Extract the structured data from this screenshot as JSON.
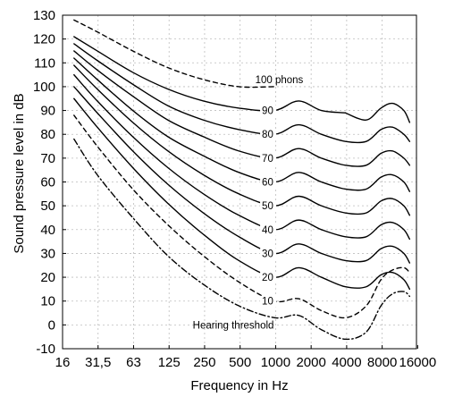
{
  "chart_data": {
    "type": "line",
    "xlabel": "Frequency in Hz",
    "ylabel": "Sound pressure level in dB",
    "xscale": "log2",
    "xlim": [
      16,
      16000
    ],
    "ylim": [
      -10,
      130
    ],
    "x_tick_labels": [
      "16",
      "31,5",
      "63",
      "125",
      "250",
      "500",
      "1000",
      "2000",
      "4000",
      "8000",
      "16000"
    ],
    "y_ticks": [
      -10,
      0,
      10,
      20,
      30,
      40,
      50,
      60,
      70,
      80,
      90,
      100,
      110,
      120,
      130
    ],
    "grid": true,
    "series": [
      {
        "name": "100 phons",
        "label": "100 phons",
        "line_style": "dashed",
        "x": [
          20,
          31.5,
          63,
          125,
          250,
          500,
          1000
        ],
        "y": [
          128,
          123,
          115,
          108,
          103,
          100,
          100
        ]
      },
      {
        "name": "90",
        "label": "90",
        "line_style": "solid",
        "x": [
          20,
          31.5,
          63,
          125,
          250,
          500,
          1000,
          1600,
          2500,
          4000,
          6000,
          8000,
          10000,
          12500,
          14000
        ],
        "y": [
          121,
          115,
          106,
          99,
          94,
          91,
          90,
          94,
          90,
          89,
          null,
          null,
          null,
          null,
          null
        ],
        "x2": [
          4000,
          6000,
          8000,
          10000,
          12500,
          14000
        ],
        "y2": [
          89,
          86,
          91,
          93,
          90,
          85
        ]
      },
      {
        "name": "80",
        "label": "80",
        "line_style": "solid",
        "x": [
          20,
          31.5,
          63,
          125,
          250,
          500,
          1000,
          1600,
          2500,
          4000,
          6000,
          8000,
          10000,
          12500,
          14000
        ],
        "y": [
          118,
          111,
          101,
          92,
          86,
          82,
          80,
          84,
          80,
          77,
          77,
          82,
          83,
          80,
          77
        ]
      },
      {
        "name": "70",
        "label": "70",
        "line_style": "solid",
        "x": [
          20,
          31.5,
          63,
          125,
          250,
          500,
          1000,
          1600,
          2500,
          4000,
          6000,
          8000,
          10000,
          12500,
          14000
        ],
        "y": [
          115,
          107,
          96,
          86,
          79,
          73,
          70,
          74,
          70,
          67,
          67,
          72,
          73,
          70,
          67
        ]
      },
      {
        "name": "60",
        "label": "60",
        "line_style": "solid",
        "x": [
          20,
          31.5,
          63,
          125,
          250,
          500,
          1000,
          1600,
          2500,
          4000,
          6000,
          8000,
          10000,
          12500,
          14000
        ],
        "y": [
          112,
          103,
          90,
          79,
          71,
          64,
          60,
          64,
          60,
          57,
          57,
          62,
          63,
          60,
          56
        ]
      },
      {
        "name": "50",
        "label": "50",
        "line_style": "solid",
        "x": [
          20,
          31.5,
          63,
          125,
          250,
          500,
          1000,
          1600,
          2500,
          4000,
          6000,
          8000,
          10000,
          12500,
          14000
        ],
        "y": [
          109,
          99,
          85,
          73,
          63,
          55,
          50,
          54,
          50,
          47,
          47,
          52,
          53,
          50,
          46
        ]
      },
      {
        "name": "40",
        "label": "40",
        "line_style": "solid",
        "x": [
          20,
          31.5,
          63,
          125,
          250,
          500,
          1000,
          1600,
          2500,
          4000,
          6000,
          8000,
          10000,
          12500,
          14000
        ],
        "y": [
          105,
          94,
          79,
          66,
          55,
          46,
          40,
          44,
          40,
          37,
          37,
          42,
          43,
          40,
          36
        ]
      },
      {
        "name": "30",
        "label": "30",
        "line_style": "solid",
        "x": [
          20,
          31.5,
          63,
          125,
          250,
          500,
          1000,
          1600,
          2500,
          4000,
          6000,
          8000,
          10000,
          12500,
          14000
        ],
        "y": [
          100,
          89,
          73,
          59,
          47,
          37,
          30,
          34,
          30,
          27,
          27,
          32,
          33,
          30,
          26
        ]
      },
      {
        "name": "20",
        "label": "20",
        "line_style": "solid",
        "x": [
          20,
          31.5,
          63,
          125,
          250,
          500,
          1000,
          1600,
          2500,
          4000,
          6000,
          8000,
          10000,
          12500,
          14000
        ],
        "y": [
          95,
          83,
          66,
          51,
          38,
          27,
          20,
          24,
          20,
          16,
          16,
          21,
          22,
          19,
          15
        ]
      },
      {
        "name": "10",
        "label": "10",
        "line_style": "dashed",
        "x": [
          20,
          31.5,
          63,
          125,
          250,
          500,
          1000,
          1600,
          2500,
          4000,
          6000,
          8000,
          10000,
          12500,
          14000
        ],
        "y": [
          88,
          75,
          57,
          42,
          29,
          18,
          10,
          11,
          6,
          3,
          8,
          19,
          23,
          24,
          22
        ]
      },
      {
        "name": "Hearing threshold",
        "label": "Hearing threshold",
        "line_style": "dashdot",
        "x": [
          20,
          31.5,
          63,
          125,
          250,
          500,
          1000,
          1600,
          2500,
          4000,
          6000,
          8000,
          10000,
          12500,
          14000
        ],
        "y": [
          78,
          63,
          45,
          29,
          17,
          8,
          3,
          4,
          -2,
          -6,
          -3,
          8,
          13,
          14,
          12
        ]
      }
    ]
  }
}
